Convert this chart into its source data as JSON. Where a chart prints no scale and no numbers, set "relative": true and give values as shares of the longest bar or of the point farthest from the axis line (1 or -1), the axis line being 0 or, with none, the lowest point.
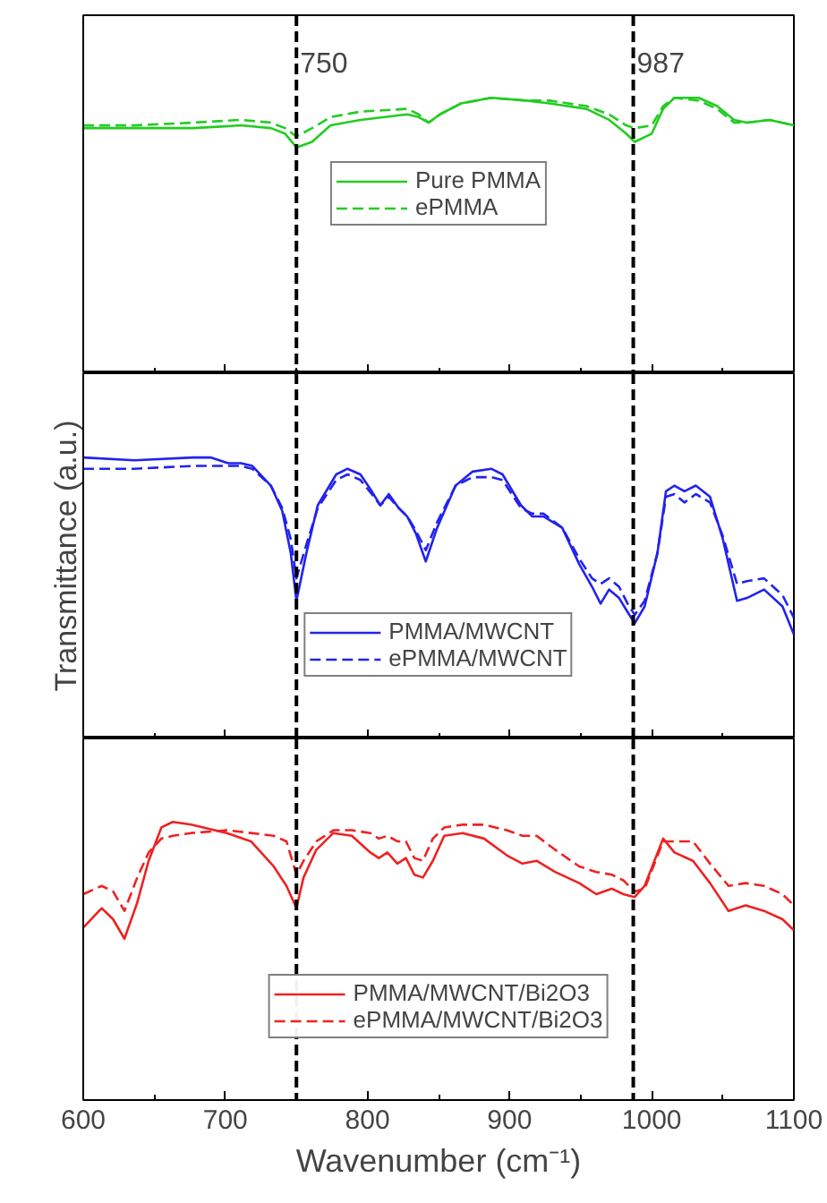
{
  "chart_data": [
    {
      "type": "line",
      "relative": true,
      "xlim": [
        600,
        1100
      ],
      "xticks": [
        600,
        700,
        800,
        900,
        1000,
        1100
      ],
      "tick_labels": false,
      "legend": "center",
      "grid": false,
      "x": [
        600,
        636,
        677,
        711,
        732,
        742,
        750,
        761,
        774,
        795,
        828,
        836,
        843,
        851,
        866,
        887,
        912,
        928,
        954,
        970,
        982,
        988,
        1000,
        1008,
        1016,
        1033,
        1046,
        1058,
        1067,
        1083,
        1100
      ],
      "series": [
        {
          "name": "Pure PMMA",
          "color": "#22cc22",
          "line_style": "solid",
          "values": [
            0.89,
            0.89,
            0.89,
            0.9,
            0.89,
            0.87,
            0.82,
            0.84,
            0.9,
            0.92,
            0.94,
            0.93,
            0.91,
            0.94,
            0.98,
            1.0,
            0.99,
            0.98,
            0.96,
            0.92,
            0.87,
            0.84,
            0.87,
            0.96,
            1.0,
            1.0,
            0.97,
            0.92,
            0.91,
            0.92,
            0.9
          ]
        },
        {
          "name": "ePMMA",
          "color": "#22cc22",
          "line_style": "dashed",
          "values": [
            0.9,
            0.9,
            0.91,
            0.92,
            0.91,
            0.89,
            0.86,
            0.89,
            0.93,
            0.95,
            0.96,
            0.94,
            0.91,
            0.94,
            0.98,
            1.0,
            0.99,
            0.99,
            0.97,
            0.94,
            0.9,
            0.89,
            0.9,
            0.97,
            1.0,
            0.99,
            0.96,
            0.91,
            0.91,
            0.92,
            0.9
          ]
        }
      ],
      "ref_lines": [
        {
          "axis": "x",
          "value": 750,
          "label": "750",
          "line_style": "dashed",
          "color": "#000000"
        },
        {
          "axis": "x",
          "value": 987,
          "label": "987",
          "line_style": "dashed",
          "color": "#000000"
        }
      ]
    },
    {
      "type": "line",
      "relative": true,
      "xlim": [
        600,
        1100
      ],
      "xticks": [
        600,
        700,
        800,
        900,
        1000,
        1100
      ],
      "tick_labels": false,
      "legend": "bottom",
      "grid": false,
      "ylabel": "Transmittance (a.u.)",
      "x": [
        600,
        636,
        677,
        690,
        702,
        711,
        719,
        732,
        740,
        746,
        750,
        757,
        765,
        778,
        786,
        795,
        803,
        809,
        815,
        822,
        828,
        834,
        841,
        849,
        862,
        874,
        887,
        895,
        908,
        916,
        924,
        937,
        949,
        958,
        964,
        970,
        977,
        983,
        988,
        995,
        1004,
        1010,
        1016,
        1023,
        1031,
        1041,
        1050,
        1060,
        1067,
        1079,
        1092,
        1100
      ],
      "series": [
        {
          "name": "PMMA/MWCNT",
          "color": "#2222ee",
          "line_style": "solid",
          "values": [
            1.0,
            0.99,
            1.0,
            1.0,
            0.98,
            0.98,
            0.97,
            0.9,
            0.81,
            0.66,
            0.49,
            0.66,
            0.83,
            0.94,
            0.96,
            0.94,
            0.88,
            0.83,
            0.87,
            0.82,
            0.79,
            0.73,
            0.63,
            0.75,
            0.9,
            0.95,
            0.96,
            0.94,
            0.83,
            0.79,
            0.79,
            0.75,
            0.62,
            0.54,
            0.48,
            0.53,
            0.5,
            0.45,
            0.41,
            0.47,
            0.66,
            0.88,
            0.9,
            0.88,
            0.9,
            0.86,
            0.71,
            0.49,
            0.5,
            0.53,
            0.47,
            0.37
          ]
        },
        {
          "name": "ePMMA/MWCNT",
          "color": "#2222ee",
          "line_style": "dashed",
          "values": [
            0.96,
            0.96,
            0.97,
            0.97,
            0.97,
            0.97,
            0.96,
            0.9,
            0.82,
            0.71,
            0.57,
            0.69,
            0.82,
            0.92,
            0.94,
            0.92,
            0.87,
            0.83,
            0.86,
            0.82,
            0.79,
            0.74,
            0.67,
            0.77,
            0.9,
            0.93,
            0.93,
            0.92,
            0.82,
            0.8,
            0.8,
            0.75,
            0.64,
            0.57,
            0.55,
            0.57,
            0.54,
            0.48,
            0.44,
            0.49,
            0.66,
            0.86,
            0.87,
            0.84,
            0.87,
            0.84,
            0.72,
            0.55,
            0.56,
            0.57,
            0.51,
            0.43
          ]
        }
      ],
      "ref_lines": [
        {
          "axis": "x",
          "value": 750,
          "label": null,
          "line_style": "dashed",
          "color": "#000000"
        },
        {
          "axis": "x",
          "value": 987,
          "label": null,
          "line_style": "dashed",
          "color": "#000000"
        }
      ]
    },
    {
      "type": "line",
      "relative": true,
      "xlim": [
        600,
        1100
      ],
      "xticks": [
        600,
        700,
        800,
        900,
        1000,
        1100
      ],
      "tick_labels": "x",
      "legend": "bottom",
      "grid": false,
      "xlabel": "Wavenumber (cm⁻¹)",
      "x": [
        600,
        613,
        621,
        629,
        638,
        646,
        655,
        663,
        676,
        701,
        718,
        734,
        743,
        750,
        755,
        764,
        776,
        789,
        802,
        808,
        814,
        821,
        827,
        833,
        839,
        846,
        854,
        867,
        882,
        898,
        909,
        919,
        932,
        949,
        961,
        972,
        980,
        988,
        995,
        1008,
        1016,
        1029,
        1041,
        1054,
        1066,
        1079,
        1092,
        1100
      ],
      "series": [
        {
          "name": "PMMA/MWCNT/Bi2O3",
          "color": "#ee2222",
          "line_style": "solid",
          "values": [
            0.62,
            0.69,
            0.65,
            0.58,
            0.71,
            0.86,
            0.98,
            1.0,
            0.99,
            0.96,
            0.93,
            0.84,
            0.77,
            0.69,
            0.8,
            0.9,
            0.96,
            0.95,
            0.89,
            0.87,
            0.89,
            0.85,
            0.87,
            0.81,
            0.8,
            0.86,
            0.95,
            0.96,
            0.94,
            0.88,
            0.85,
            0.86,
            0.82,
            0.78,
            0.74,
            0.76,
            0.74,
            0.73,
            0.77,
            0.94,
            0.89,
            0.86,
            0.78,
            0.68,
            0.7,
            0.68,
            0.65,
            0.61
          ]
        },
        {
          "name": "ePMMA/MWCNT/Bi2O3",
          "color": "#ee2222",
          "line_style": "dashed",
          "values": [
            0.74,
            0.77,
            0.75,
            0.68,
            0.8,
            0.89,
            0.94,
            0.95,
            0.96,
            0.97,
            0.96,
            0.95,
            0.93,
            0.81,
            0.86,
            0.93,
            0.97,
            0.97,
            0.96,
            0.94,
            0.95,
            0.93,
            0.93,
            0.87,
            0.86,
            0.94,
            0.98,
            0.99,
            0.99,
            0.97,
            0.95,
            0.95,
            0.9,
            0.84,
            0.82,
            0.81,
            0.79,
            0.75,
            0.76,
            0.93,
            0.93,
            0.93,
            0.85,
            0.77,
            0.78,
            0.77,
            0.74,
            0.7
          ]
        }
      ],
      "ref_lines": [
        {
          "axis": "x",
          "value": 750,
          "label": null,
          "line_style": "dashed",
          "color": "#000000"
        },
        {
          "axis": "x",
          "value": 987,
          "label": null,
          "line_style": "dashed",
          "color": "#000000"
        }
      ]
    }
  ]
}
